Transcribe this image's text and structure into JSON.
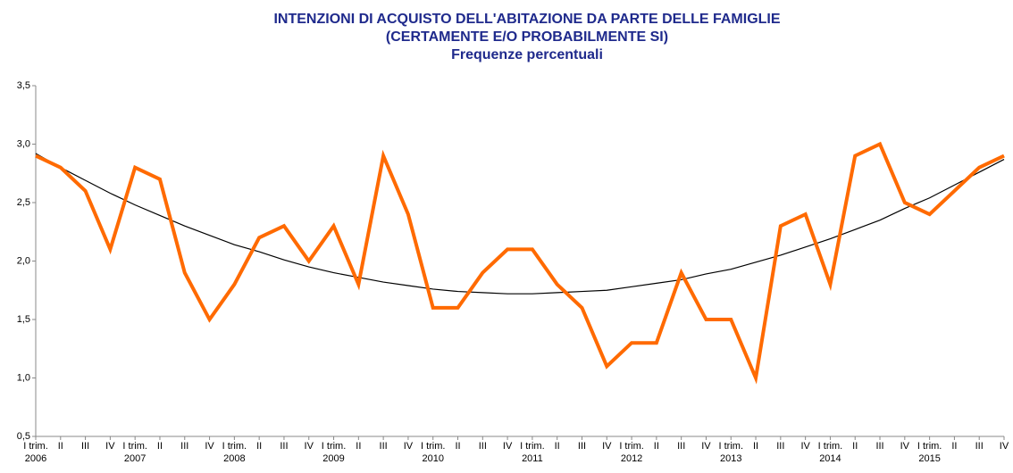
{
  "chart_data": {
    "type": "line",
    "title": "INTENZIONI  DI ACQUISTO  DELL'ABITAZIONE  DA PARTE DELLE FAMIGLIE",
    "subtitle": "(CERTAMENTE  E/O PROBABILMENTE  SI)",
    "subtitle2": "Frequenze percentuali",
    "categories": [
      "I trim.",
      "II",
      "III",
      "IV",
      "I trim.",
      "II",
      "III",
      "IV",
      "I trim.",
      "II",
      "III",
      "IV",
      "I trim.",
      "II",
      "III",
      "IV",
      "I trim.",
      "II",
      "III",
      "IV",
      "I trim.",
      "II",
      "III",
      "IV",
      "I trim.",
      "II",
      "III",
      "IV",
      "I trim.",
      "II",
      "III",
      "IV",
      "I trim.",
      "II",
      "III",
      "IV",
      "I trim.",
      "II",
      "III",
      "IV"
    ],
    "years": [
      "2006",
      "2007",
      "2008",
      "2009",
      "2010",
      "2011",
      "2012",
      "2013",
      "2014",
      "2015"
    ],
    "series": [
      {
        "color": "#ff6a00",
        "values": [
          2.9,
          2.8,
          2.6,
          2.1,
          2.8,
          2.7,
          1.9,
          1.5,
          1.8,
          2.2,
          2.3,
          2.0,
          2.3,
          1.8,
          2.9,
          2.4,
          1.6,
          1.6,
          1.9,
          2.1,
          2.1,
          1.8,
          1.6,
          1.1,
          1.3,
          1.3,
          1.9,
          1.5,
          1.5,
          1.0,
          2.3,
          2.4,
          1.8,
          2.9,
          3.0,
          2.5,
          2.4,
          2.6,
          2.8,
          2.9
        ]
      },
      {
        "color": "#000000",
        "values": [
          2.92,
          2.8,
          2.69,
          2.58,
          2.48,
          2.39,
          2.3,
          2.22,
          2.14,
          2.08,
          2.01,
          1.95,
          1.9,
          1.86,
          1.82,
          1.79,
          1.76,
          1.74,
          1.73,
          1.72,
          1.72,
          1.73,
          1.74,
          1.75,
          1.78,
          1.81,
          1.84,
          1.89,
          1.93,
          1.99,
          2.05,
          2.12,
          2.19,
          2.27,
          2.35,
          2.45,
          2.54,
          2.65,
          2.76,
          2.87
        ]
      }
    ],
    "ylim": [
      0.5,
      3.5
    ],
    "yticks": [
      {
        "value": 0.5,
        "label": "0,5"
      },
      {
        "value": 1.0,
        "label": "1,0"
      },
      {
        "value": 1.5,
        "label": "1,5"
      },
      {
        "value": 2.0,
        "label": "2,0"
      },
      {
        "value": 2.5,
        "label": "2,5"
      },
      {
        "value": 3.0,
        "label": "3,0"
      },
      {
        "value": 3.5,
        "label": "3,5"
      }
    ],
    "grid": false
  }
}
